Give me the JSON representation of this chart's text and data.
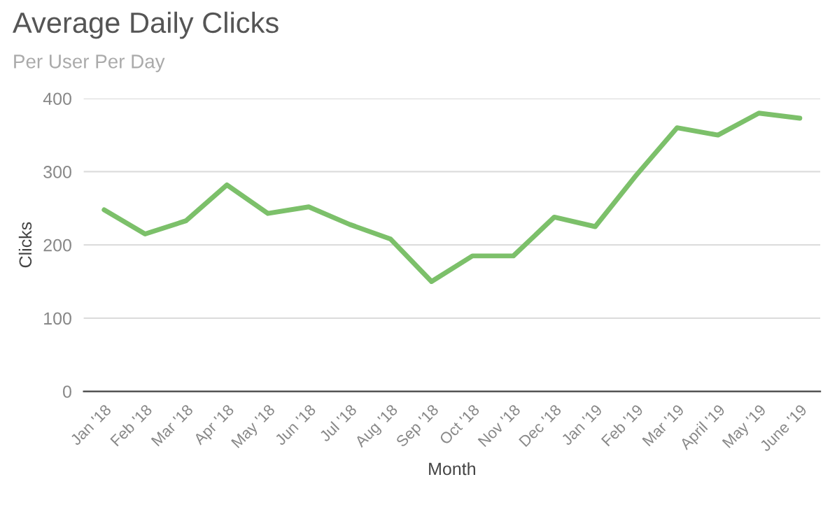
{
  "chart_data": {
    "type": "line",
    "title": "Average Daily Clicks",
    "subtitle": "Per User Per Day",
    "xlabel": "Month",
    "ylabel": "Clicks",
    "categories": [
      "Jan '18",
      "Feb '18",
      "Mar '18",
      "Apr '18",
      "May '18",
      "Jun '18",
      "Jul '18",
      "Aug '18",
      "Sep '18",
      "Oct '18",
      "Nov '18",
      "Dec '18",
      "Jan '19",
      "Feb '19",
      "Mar '19",
      "April '19",
      "May '19",
      "June '19"
    ],
    "series": [
      {
        "color": "#7cc06a",
        "values": [
          248,
          215,
          233,
          282,
          243,
          252,
          228,
          208,
          150,
          185,
          185,
          238,
          225,
          295,
          360,
          350,
          380,
          373
        ]
      }
    ],
    "ylim": [
      0,
      400
    ],
    "yticks": [
      0,
      100,
      200,
      300,
      400
    ],
    "grid": "y",
    "legend": false,
    "marker": "none",
    "line_style": "solid"
  }
}
